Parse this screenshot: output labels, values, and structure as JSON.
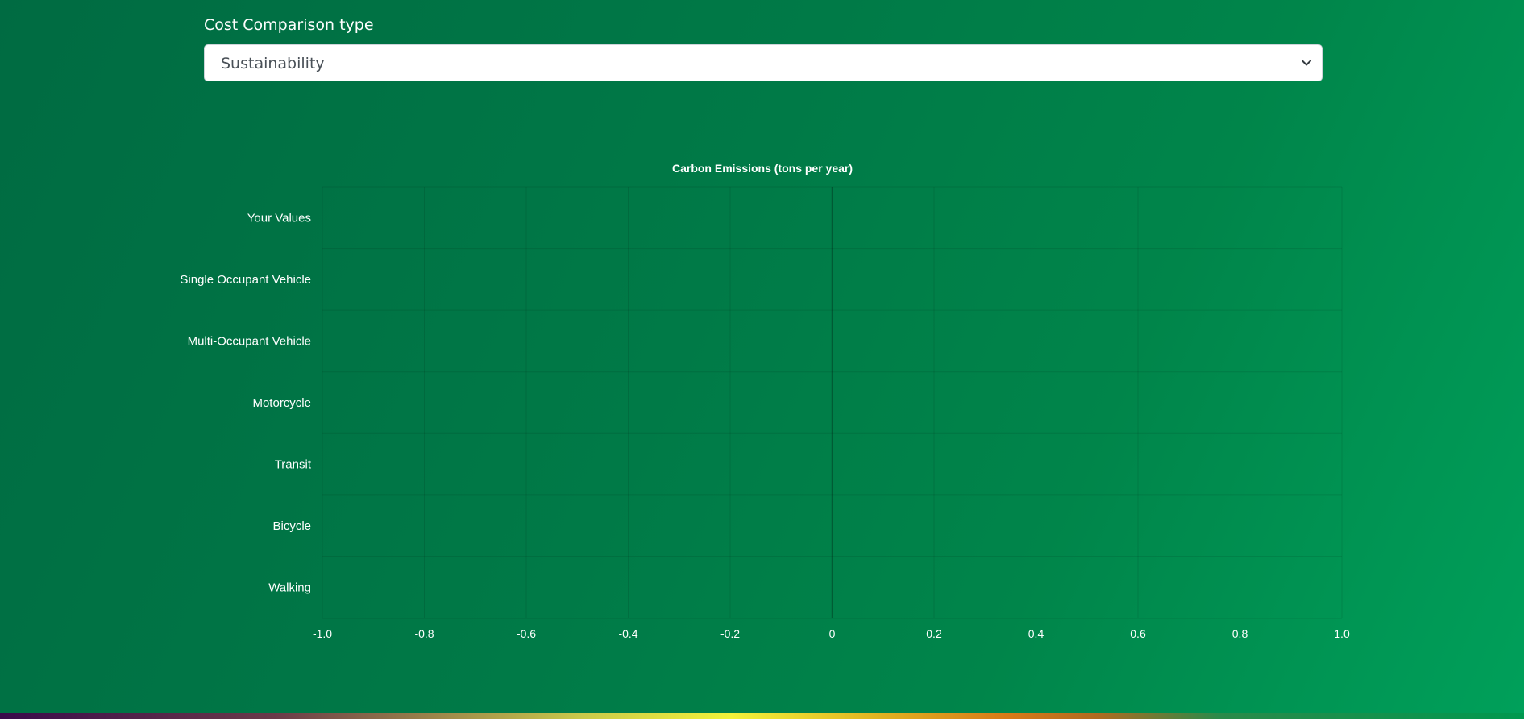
{
  "form": {
    "label": "Cost Comparison type",
    "selected": "Sustainability"
  },
  "icons": {
    "select_chevron": "chevron-down-icon"
  },
  "colors": {
    "background": "#007a47",
    "text": "#ffffff"
  },
  "chart_data": {
    "type": "bar",
    "orientation": "horizontal",
    "title": "Carbon Emissions (tons per year)",
    "xlabel": "",
    "ylabel": "",
    "categories": [
      "Your Values",
      "Single Occupant Vehicle",
      "Multi-Occupant Vehicle",
      "Motorcycle",
      "Transit",
      "Bicycle",
      "Walking"
    ],
    "values": [
      0,
      0,
      0,
      0,
      0,
      0,
      0
    ],
    "xlim": [
      -1.0,
      1.0
    ],
    "x_ticks": [
      "-1.0",
      "-0.8",
      "-0.6",
      "-0.4",
      "-0.2",
      "0",
      "0.2",
      "0.4",
      "0.6",
      "0.8",
      "1.0"
    ],
    "grid": true,
    "legend": "none"
  }
}
